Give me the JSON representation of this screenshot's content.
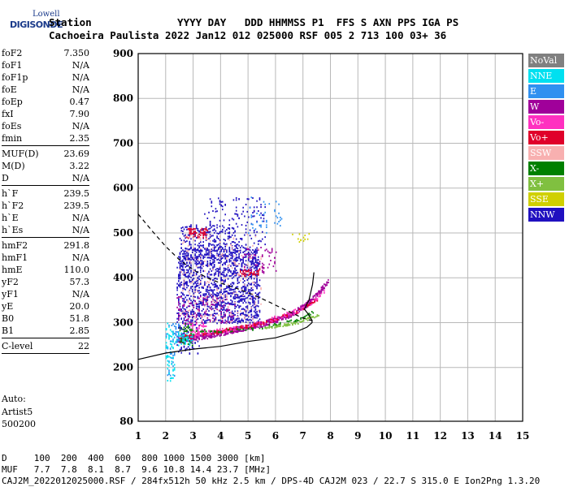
{
  "logo": {
    "line1": "Lowell",
    "line2": "DIGISONDE"
  },
  "header": {
    "line1": "Station              YYYY DAY   DDD HHMMSS P1  FFS S AXN PPS IGA PS",
    "line2": "Cachoeira Paulista 2022 Jan12 012 025000 RSF 005 2 713 100 03+ 36"
  },
  "params": [
    {
      "label": "foF2",
      "value": "7.350"
    },
    {
      "label": "foF1",
      "value": "N/A"
    },
    {
      "label": "foF1p",
      "value": "N/A"
    },
    {
      "label": "foE",
      "value": "N/A"
    },
    {
      "label": "foEp",
      "value": "0.47"
    },
    {
      "label": "fxI",
      "value": "7.90"
    },
    {
      "label": "foEs",
      "value": "N/A"
    },
    {
      "label": "fmin",
      "value": "2.35"
    },
    {
      "sep": true
    },
    {
      "label": "MUF(D)",
      "value": "23.69"
    },
    {
      "label": "M(D)",
      "value": "3.22"
    },
    {
      "label": "D",
      "value": "N/A"
    },
    {
      "sep": true
    },
    {
      "label": "h`F",
      "value": "239.5"
    },
    {
      "label": "h`F2",
      "value": "239.5"
    },
    {
      "label": "h`E",
      "value": "N/A"
    },
    {
      "label": "h`Es",
      "value": "N/A"
    },
    {
      "sep": true
    },
    {
      "label": "hmF2",
      "value": "291.8"
    },
    {
      "label": "hmF1",
      "value": "N/A"
    },
    {
      "label": "hmE",
      "value": "110.0"
    },
    {
      "label": "yF2",
      "value": "57.3"
    },
    {
      "label": "yF1",
      "value": "N/A"
    },
    {
      "label": "yE",
      "value": "20.0"
    },
    {
      "label": "B0",
      "value": "51.8"
    },
    {
      "label": "B1",
      "value": "2.85"
    },
    {
      "sep": true
    },
    {
      "label": "C-level",
      "value": "22"
    },
    {
      "sep": true
    }
  ],
  "auto": {
    "line1": "Auto:",
    "line2": "Artist5",
    "line3": "500200"
  },
  "legend": [
    {
      "label": "NoVal",
      "color": "#808080"
    },
    {
      "label": "NNE",
      "color": "#00e0f0"
    },
    {
      "label": "E",
      "color": "#3090f0"
    },
    {
      "label": "W",
      "color": "#a0009a"
    },
    {
      "label": "Vo-",
      "color": "#ff30c0"
    },
    {
      "label": "Vo+",
      "color": "#e0002a"
    },
    {
      "label": "SSW",
      "color": "#f8b0b0"
    },
    {
      "label": "X-",
      "color": "#008000"
    },
    {
      "label": "X+",
      "color": "#80c040"
    },
    {
      "label": "SSE",
      "color": "#d0d000"
    },
    {
      "label": "NNW",
      "color": "#2010c0"
    }
  ],
  "footer": {
    "line1": "D     100  200  400  600  800 1000 1500 3000 [km]",
    "line2": "MUF   7.7  7.8  8.1  8.7  9.6 10.8 14.4 23.7 [MHz]",
    "line3": "CAJ2M_2022012025000.RSF / 284fx512h 50 kHz 2.5 km / DPS-4D CAJ2M 023 / 22.7 S 315.0 E Ion2Png 1.3.20"
  },
  "chart_data": {
    "type": "scatter",
    "xlim": [
      1,
      15
    ],
    "ylim": [
      80,
      900
    ],
    "xticks": [
      1,
      2,
      3,
      4,
      5,
      6,
      7,
      8,
      9,
      10,
      11,
      12,
      13,
      14,
      15
    ],
    "yticks": [
      80,
      200,
      300,
      400,
      500,
      600,
      700,
      800,
      900
    ],
    "grid": true,
    "series": [
      {
        "name": "NNW",
        "color": "#2010c0",
        "clusters": [
          {
            "x": [
              2.4,
              5.4
            ],
            "y": [
              300,
              470
            ],
            "n": 1400
          },
          {
            "x": [
              2.5,
              4.6
            ],
            "y": [
              430,
              520
            ],
            "n": 250
          },
          {
            "x": [
              3.4,
              5.6
            ],
            "y": [
              470,
              580
            ],
            "n": 150
          },
          {
            "x": [
              2.4,
              3.2
            ],
            "y": [
              230,
              300
            ],
            "n": 80
          }
        ]
      },
      {
        "name": "W",
        "color": "#a0009a",
        "clusters": [
          {
            "curve": [
              [
                2.4,
                262
              ],
              [
                3.5,
                272
              ],
              [
                4.5,
                285
              ],
              [
                5.5,
                298
              ],
              [
                6.5,
                318
              ],
              [
                7.2,
                345
              ],
              [
                7.9,
                392
              ]
            ],
            "spread": 6,
            "n": 600
          },
          {
            "x": [
              2.4,
              4.5
            ],
            "y": [
              300,
              360
            ],
            "n": 120
          },
          {
            "x": [
              4.8,
              6.0
            ],
            "y": [
              410,
              470
            ],
            "n": 60
          }
        ]
      },
      {
        "name": "Vo+",
        "color": "#e0002a",
        "clusters": [
          {
            "curve": [
              [
                2.5,
                268
              ],
              [
                4.0,
                282
              ],
              [
                5.5,
                300
              ],
              [
                6.8,
                326
              ],
              [
                7.5,
                355
              ]
            ],
            "spread": 4,
            "n": 180
          },
          {
            "x": [
              2.7,
              3.5
            ],
            "y": [
              490,
              512
            ],
            "n": 60
          },
          {
            "x": [
              4.6,
              5.4
            ],
            "y": [
              405,
              420
            ],
            "n": 40
          }
        ]
      },
      {
        "name": "Vo-",
        "color": "#ff30c0",
        "clusters": [
          {
            "curve": [
              [
                3.0,
                275
              ],
              [
                5.0,
                292
              ],
              [
                7.0,
                332
              ],
              [
                7.8,
                375
              ]
            ],
            "spread": 5,
            "n": 120
          },
          {
            "x": [
              2.6,
              3.5
            ],
            "y": [
              280,
              300
            ],
            "n": 40
          }
        ]
      },
      {
        "name": "SSW",
        "color": "#f8b0b0",
        "clusters": [
          {
            "x": [
              2.5,
              5.5
            ],
            "y": [
              300,
              500
            ],
            "n": 220
          }
        ]
      },
      {
        "name": "X-",
        "color": "#008000",
        "clusters": [
          {
            "curve": [
              [
                2.6,
                285
              ],
              [
                4.0,
                282
              ],
              [
                5.5,
                290
              ],
              [
                6.8,
                308
              ],
              [
                7.5,
                330
              ]
            ],
            "spread": 3,
            "n": 80
          },
          {
            "x": [
              2.5,
              3.0
            ],
            "y": [
              250,
              300
            ],
            "n": 30
          }
        ]
      },
      {
        "name": "X+",
        "color": "#80c040",
        "clusters": [
          {
            "curve": [
              [
                5.5,
                288
              ],
              [
                6.8,
                302
              ],
              [
                7.6,
                320
              ]
            ],
            "spread": 3,
            "n": 70
          }
        ]
      },
      {
        "name": "E",
        "color": "#3090f0",
        "clusters": [
          {
            "x": [
              2.0,
              2.3
            ],
            "y": [
              180,
              300
            ],
            "n": 40
          },
          {
            "x": [
              5.0,
              6.2
            ],
            "y": [
              500,
              585
            ],
            "n": 40
          },
          {
            "x": [
              2.3,
              2.5
            ],
            "y": [
              255,
              300
            ],
            "n": 30
          }
        ]
      },
      {
        "name": "NNE",
        "color": "#00e0f0",
        "clusters": [
          {
            "x": [
              1.95,
              2.3
            ],
            "y": [
              170,
              300
            ],
            "n": 60
          },
          {
            "x": [
              2.3,
              3.0
            ],
            "y": [
              250,
              280
            ],
            "n": 40
          }
        ]
      },
      {
        "name": "SSE",
        "color": "#d0d000",
        "clusters": [
          {
            "x": [
              6.6,
              7.2
            ],
            "y": [
              475,
              500
            ],
            "n": 12
          }
        ]
      }
    ],
    "curves": [
      {
        "style": "solid",
        "points": [
          [
            1,
            218
          ],
          [
            2,
            232
          ],
          [
            3,
            241
          ],
          [
            4,
            247
          ],
          [
            5,
            258
          ],
          [
            6,
            266
          ],
          [
            6.7,
            278
          ],
          [
            7.15,
            290
          ],
          [
            7.33,
            300
          ],
          [
            7.33,
            305
          ],
          [
            7.18,
            320
          ],
          [
            7.05,
            330
          ],
          [
            7.22,
            350
          ],
          [
            7.35,
            385
          ],
          [
            7.4,
            412
          ]
        ]
      },
      {
        "style": "dashed",
        "points": [
          [
            1,
            542
          ],
          [
            1.5,
            505
          ],
          [
            2.0,
            470
          ],
          [
            2.5,
            440
          ],
          [
            3.0,
            418
          ],
          [
            3.5,
            400
          ],
          [
            4.0,
            388
          ],
          [
            4.6,
            376
          ],
          [
            5.2,
            362
          ],
          [
            5.8,
            345
          ],
          [
            6.4,
            327
          ],
          [
            7.0,
            310
          ],
          [
            7.4,
            303
          ]
        ]
      }
    ]
  }
}
